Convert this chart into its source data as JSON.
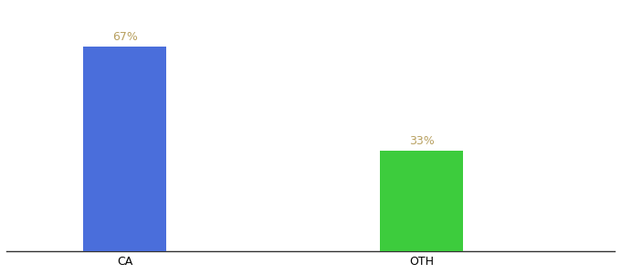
{
  "categories": [
    "CA",
    "OTH"
  ],
  "values": [
    67,
    33
  ],
  "bar_colors": [
    "#4a6edb",
    "#3dcc3d"
  ],
  "label_texts": [
    "67%",
    "33%"
  ],
  "label_color": "#b8a060",
  "ylim": [
    0,
    80
  ],
  "background_color": "#ffffff",
  "bar_width": 0.28,
  "label_fontsize": 9,
  "tick_fontsize": 9
}
